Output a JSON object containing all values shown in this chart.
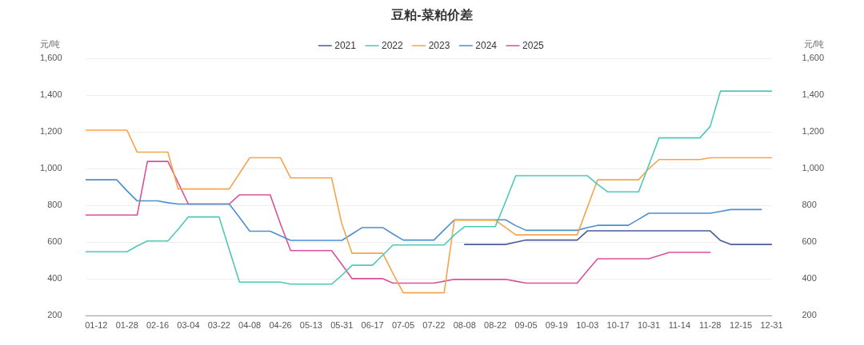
{
  "chart_data": {
    "type": "line",
    "title": "豆粕-菜粕价差",
    "ylabel": "元/吨",
    "y2label": "元/吨",
    "categories": [
      null,
      "01-12",
      null,
      null,
      "01-28",
      null,
      null,
      "02-16",
      null,
      null,
      "03-04",
      null,
      null,
      "03-22",
      null,
      null,
      "04-08",
      null,
      null,
      "04-26",
      null,
      null,
      "05-13",
      null,
      null,
      "05-31",
      null,
      null,
      "06-17",
      null,
      null,
      "07-05",
      null,
      null,
      "07-22",
      null,
      null,
      "08-08",
      null,
      null,
      "08-22",
      null,
      null,
      "09-05",
      null,
      null,
      "09-19",
      null,
      null,
      "10-03",
      null,
      null,
      "10-17",
      null,
      null,
      "10-31",
      null,
      null,
      "11-14",
      null,
      null,
      "11-28",
      null,
      null,
      "12-15",
      null,
      null,
      "12-31"
    ],
    "series": [
      {
        "name": "2021",
        "color": "#4b5b9b",
        "values": [
          null,
          null,
          null,
          null,
          null,
          null,
          null,
          null,
          null,
          null,
          null,
          null,
          null,
          null,
          null,
          null,
          null,
          null,
          null,
          null,
          null,
          null,
          null,
          null,
          null,
          null,
          null,
          null,
          null,
          null,
          null,
          null,
          null,
          null,
          null,
          null,
          null,
          588,
          588,
          588,
          588,
          588,
          600,
          612,
          612,
          612,
          612,
          612,
          612,
          662,
          662,
          662,
          662,
          662,
          662,
          662,
          662,
          662,
          662,
          662,
          662,
          662,
          610,
          588,
          588,
          588,
          588,
          588
        ]
      },
      {
        "name": "2022",
        "color": "#4ec9b9",
        "values": [
          548,
          548,
          548,
          548,
          548,
          580,
          607,
          607,
          607,
          670,
          738,
          738,
          738,
          738,
          560,
          383,
          383,
          383,
          383,
          383,
          372,
          372,
          372,
          372,
          372,
          420,
          475,
          475,
          475,
          530,
          585,
          585,
          585,
          585,
          585,
          585,
          640,
          685,
          685,
          685,
          685,
          820,
          962,
          962,
          962,
          962,
          962,
          962,
          962,
          962,
          915,
          874,
          874,
          874,
          874,
          1020,
          1168,
          1168,
          1168,
          1168,
          1168,
          1230,
          1422,
          1422,
          1422,
          1422,
          1422,
          1422
        ]
      },
      {
        "name": "2023",
        "color": "#f5a54a",
        "values": [
          1210,
          1210,
          1210,
          1210,
          1210,
          1090,
          1090,
          1090,
          1090,
          890,
          890,
          890,
          890,
          890,
          890,
          975,
          1060,
          1060,
          1060,
          1060,
          950,
          950,
          950,
          950,
          950,
          700,
          540,
          540,
          540,
          540,
          430,
          325,
          325,
          325,
          325,
          325,
          720,
          720,
          720,
          720,
          720,
          680,
          640,
          640,
          640,
          640,
          640,
          640,
          640,
          790,
          940,
          940,
          940,
          940,
          940,
          1000,
          1050,
          1050,
          1050,
          1050,
          1050,
          1060,
          1060,
          1060,
          1060,
          1060,
          1060,
          1060
        ]
      },
      {
        "name": "2024",
        "color": "#4b8fd0",
        "values": [
          940,
          940,
          940,
          940,
          880,
          825,
          825,
          825,
          815,
          808,
          808,
          808,
          808,
          808,
          808,
          735,
          660,
          660,
          660,
          635,
          610,
          610,
          610,
          610,
          610,
          610,
          645,
          680,
          680,
          680,
          645,
          612,
          612,
          612,
          612,
          667,
          722,
          722,
          722,
          722,
          722,
          722,
          690,
          665,
          665,
          665,
          665,
          665,
          665,
          680,
          692,
          692,
          692,
          692,
          725,
          758,
          758,
          758,
          758,
          758,
          758,
          758,
          768,
          778,
          778,
          778,
          778,
          null
        ]
      },
      {
        "name": "2025",
        "color": "#d9519c",
        "values": [
          748,
          748,
          748,
          748,
          748,
          748,
          1040,
          1040,
          1040,
          925,
          808,
          808,
          808,
          808,
          808,
          858,
          858,
          858,
          858,
          700,
          555,
          555,
          555,
          555,
          555,
          480,
          402,
          402,
          402,
          402,
          378,
          378,
          378,
          378,
          378,
          388,
          398,
          398,
          398,
          398,
          398,
          398,
          388,
          378,
          378,
          378,
          378,
          378,
          378,
          445,
          510,
          510,
          510,
          510,
          510,
          510,
          528,
          545,
          545,
          545,
          545,
          545,
          null,
          null,
          null,
          null,
          null,
          null
        ]
      }
    ],
    "ylim": [
      200,
      1600
    ],
    "yticks": [
      200,
      400,
      600,
      800,
      {
        "value": 1000,
        "label": "1,000"
      },
      {
        "value": 1200,
        "label": "1,200"
      },
      {
        "value": 1400,
        "label": "1,400"
      },
      {
        "value": 1600,
        "label": "1,600"
      }
    ],
    "y2lim": [
      200,
      1600
    ],
    "y2ticks": [
      200,
      400,
      600,
      800,
      {
        "value": 1000,
        "label": "1,000"
      },
      {
        "value": 1200,
        "label": "1,200"
      },
      {
        "value": 1400,
        "label": "1,400"
      },
      {
        "value": 1600,
        "label": "1,600"
      }
    ],
    "grid": "y",
    "legend": "top",
    "marker": "none",
    "line_style": "solid"
  }
}
